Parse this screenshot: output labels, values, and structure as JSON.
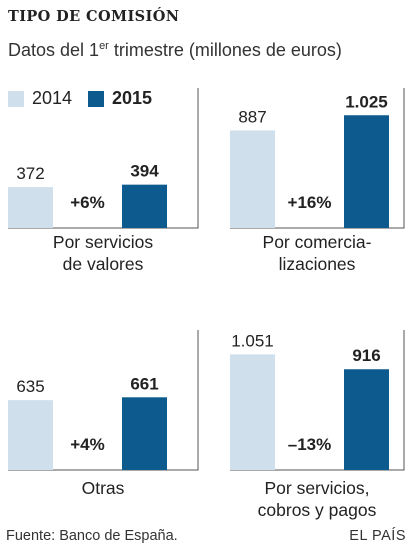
{
  "title": "TIPO DE COMISIÓN",
  "subtitle": {
    "text_before": "Datos del 1",
    "superscript": "er",
    "text_after": " trimestre (millones de euros)"
  },
  "legend": [
    {
      "label": "2014",
      "color": "#cfdfec",
      "bold": false
    },
    {
      "label": "2015",
      "color": "#0c5a8e",
      "bold": true
    }
  ],
  "chart_data": [
    {
      "type": "bar",
      "category_label": [
        "Por servicios",
        "de valores"
      ],
      "series": [
        {
          "name": "2014",
          "value": 372,
          "display": "372"
        },
        {
          "name": "2015",
          "value": 394,
          "display": "394"
        }
      ],
      "change": "+6%"
    },
    {
      "type": "bar",
      "category_label": [
        "Por comercia-",
        "lizaciones"
      ],
      "series": [
        {
          "name": "2014",
          "value": 887,
          "display": "887"
        },
        {
          "name": "2015",
          "value": 1025,
          "display": "1.025"
        }
      ],
      "change": "+16%"
    },
    {
      "type": "bar",
      "category_label": [
        "Otras"
      ],
      "series": [
        {
          "name": "2014",
          "value": 635,
          "display": "635"
        },
        {
          "name": "2015",
          "value": 661,
          "display": "661"
        }
      ],
      "change": "+4%"
    },
    {
      "type": "bar",
      "category_label": [
        "Por servicios,",
        "cobros y pagos"
      ],
      "series": [
        {
          "name": "2014",
          "value": 1051,
          "display": "1.051"
        },
        {
          "name": "2015",
          "value": 916,
          "display": "916"
        }
      ],
      "change": "–13%"
    }
  ],
  "footer": {
    "source": "Fuente: Banco de España.",
    "brand": "EL PAÍS"
  }
}
